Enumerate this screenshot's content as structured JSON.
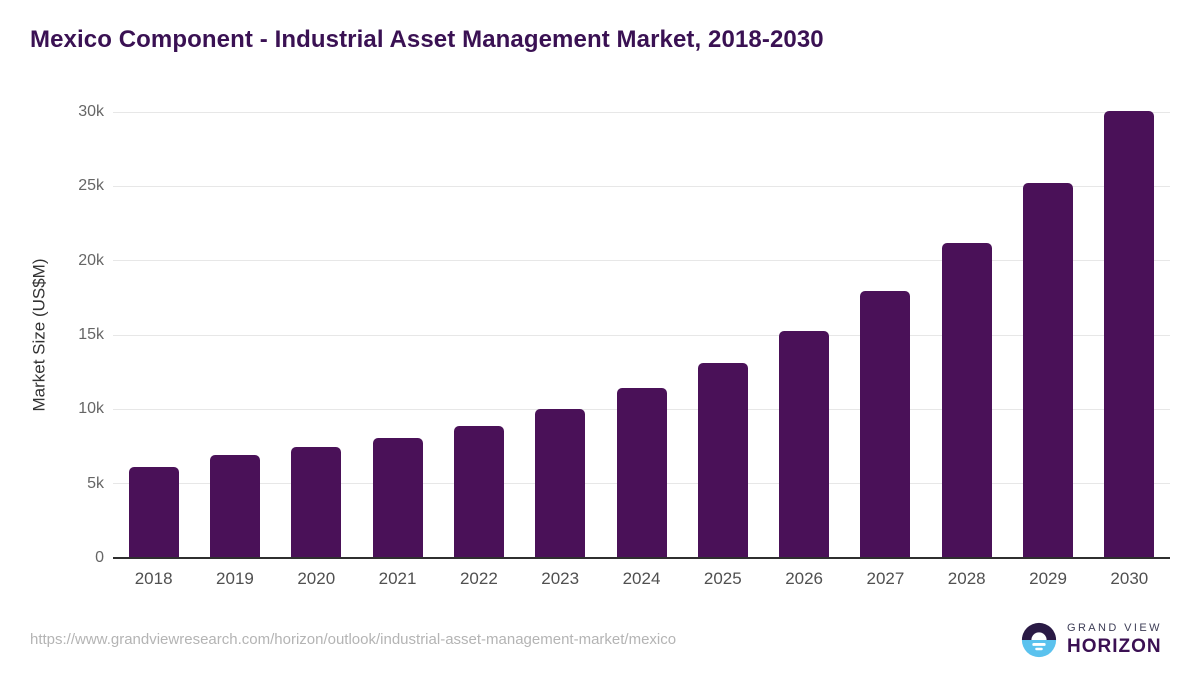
{
  "page": {
    "title": "Mexico Component - Industrial Asset Management Market, 2018-2030",
    "source_url": "https://www.grandviewresearch.com/horizon/outlook/industrial-asset-management-market/mexico",
    "brand": {
      "line1": "GRAND VIEW",
      "line2": "HORIZON"
    }
  },
  "colors": {
    "bar": "#4a1158",
    "title": "#3a1153",
    "gridline": "#e7e7e7",
    "axis_line": "#2f2f2f",
    "y_tick": "#666666",
    "x_tick": "#505050",
    "url_text": "#b4b4b4",
    "logo_dark": "#2a1a45",
    "logo_blue": "#5bc2ee",
    "logo_white": "#ffffff"
  },
  "chart_data": {
    "type": "bar",
    "title": "Mexico Component - Industrial Asset Management Market, 2018-2030",
    "categories": [
      "2018",
      "2019",
      "2020",
      "2021",
      "2022",
      "2023",
      "2024",
      "2025",
      "2026",
      "2027",
      "2028",
      "2029",
      "2030"
    ],
    "values": [
      6100,
      6900,
      7450,
      8100,
      8900,
      10000,
      11450,
      13150,
      15300,
      17950,
      21200,
      25200,
      30050
    ],
    "series_name": "Market Size",
    "xlabel": "",
    "ylabel": "Market Size (US$M)",
    "ylim": [
      0,
      30000
    ],
    "yticks": [
      {
        "label": "0",
        "value": 0
      },
      {
        "label": "5k",
        "value": 5000
      },
      {
        "label": "10k",
        "value": 10000
      },
      {
        "label": "15k",
        "value": 15000
      },
      {
        "label": "20k",
        "value": 20000
      },
      {
        "label": "25k",
        "value": 25000
      },
      {
        "label": "30k",
        "value": 30000
      }
    ],
    "grid": true,
    "legend": false,
    "bar_color": "#4a1158"
  }
}
